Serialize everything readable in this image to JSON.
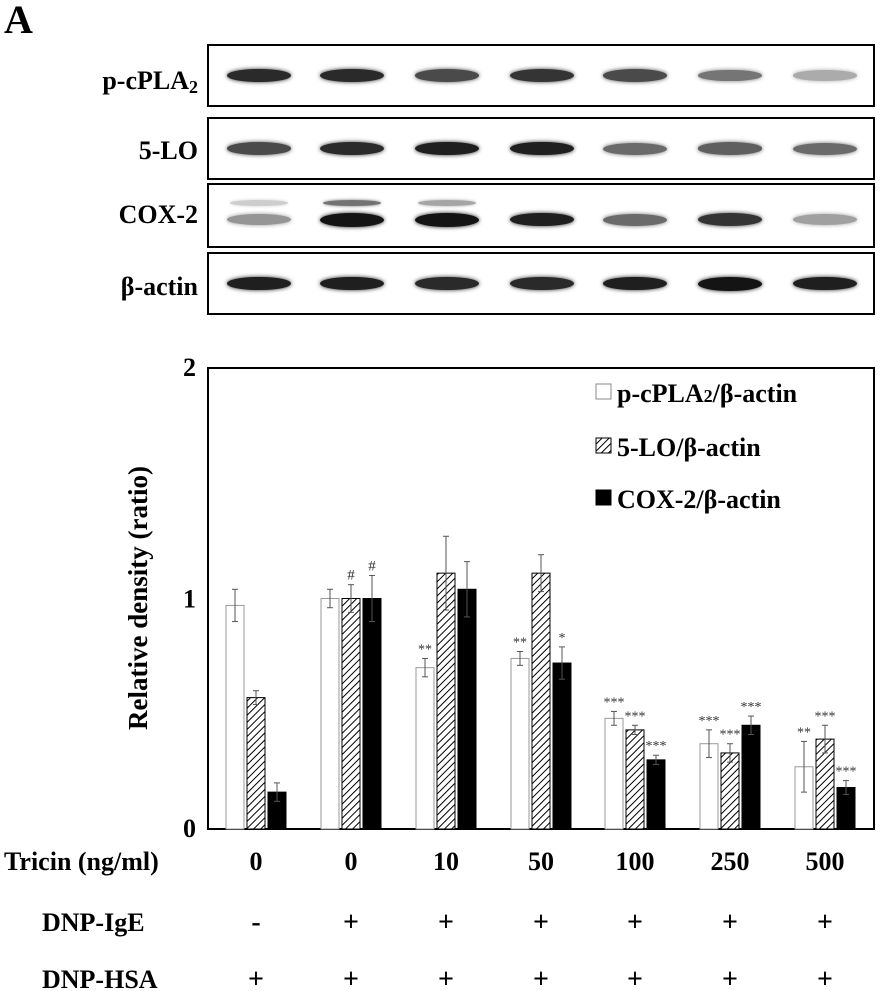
{
  "panel_label": "A",
  "blot": {
    "rows": [
      {
        "name": "p-cPLA",
        "subscript": "2",
        "intensities": [
          0.9,
          0.9,
          0.75,
          0.85,
          0.75,
          0.55,
          0.3
        ]
      },
      {
        "name": "5-LO",
        "subscript": "",
        "intensities": [
          0.75,
          0.9,
          0.95,
          0.95,
          0.6,
          0.65,
          0.6
        ]
      },
      {
        "name": "COX-2",
        "subscript": "",
        "intensities": [
          0.4,
          1.0,
          1.0,
          0.95,
          0.6,
          0.85,
          0.35
        ],
        "upper_band": [
          0.15,
          0.6,
          0.35,
          0,
          0,
          0,
          0
        ]
      },
      {
        "name": "β-actin",
        "subscript": "",
        "intensities": [
          0.95,
          0.95,
          0.9,
          0.9,
          0.95,
          1.0,
          0.95
        ]
      }
    ]
  },
  "chart_data": {
    "type": "bar",
    "title": "",
    "xlabel": "",
    "ylabel": "Relative density (ratio)",
    "ylim": [
      0,
      2
    ],
    "yticks": [
      "0",
      "1",
      "2"
    ],
    "grid": false,
    "legend": "top-right",
    "row_labels": [
      "Tricin (ng/ml)",
      "DNP-IgE",
      "DNP-HSA"
    ],
    "categories": [
      "0",
      "0",
      "10",
      "50",
      "100",
      "250",
      "500"
    ],
    "dnp_ige": [
      "-",
      "+",
      "+",
      "+",
      "+",
      "+",
      "+"
    ],
    "dnp_hsa": [
      "+",
      "+",
      "+",
      "+",
      "+",
      "+",
      "+"
    ],
    "series": [
      {
        "name": "p-cPLA2/β-actin",
        "legend_main": "p-cPLA",
        "legend_sub": "2",
        "legend_tail": "/β-actin",
        "style": "white",
        "values": [
          0.97,
          1.0,
          0.7,
          0.74,
          0.48,
          0.37,
          0.27
        ],
        "errors": [
          0.07,
          0.04,
          0.04,
          0.03,
          0.03,
          0.06,
          0.11
        ],
        "marks": [
          "",
          "",
          "**",
          "**",
          "***",
          "***",
          "**"
        ]
      },
      {
        "name": "5-LO/β-actin",
        "legend_main": "5-LO/β-actin",
        "legend_sub": "",
        "legend_tail": "",
        "style": "hatched",
        "values": [
          0.57,
          1.0,
          1.11,
          1.11,
          0.43,
          0.33,
          0.39
        ],
        "errors": [
          0.03,
          0.06,
          0.16,
          0.08,
          0.02,
          0.04,
          0.06
        ],
        "marks": [
          "",
          "#",
          "",
          "",
          "***",
          "***",
          "***"
        ]
      },
      {
        "name": "COX-2/β-actin",
        "legend_main": "COX-2/β-actin",
        "legend_sub": "",
        "legend_tail": "",
        "style": "black",
        "values": [
          0.16,
          1.0,
          1.04,
          0.72,
          0.3,
          0.45,
          0.18
        ],
        "errors": [
          0.04,
          0.1,
          0.12,
          0.07,
          0.02,
          0.04,
          0.03
        ],
        "marks": [
          "",
          "#",
          "",
          "*",
          "***",
          "***",
          "***"
        ]
      }
    ]
  }
}
